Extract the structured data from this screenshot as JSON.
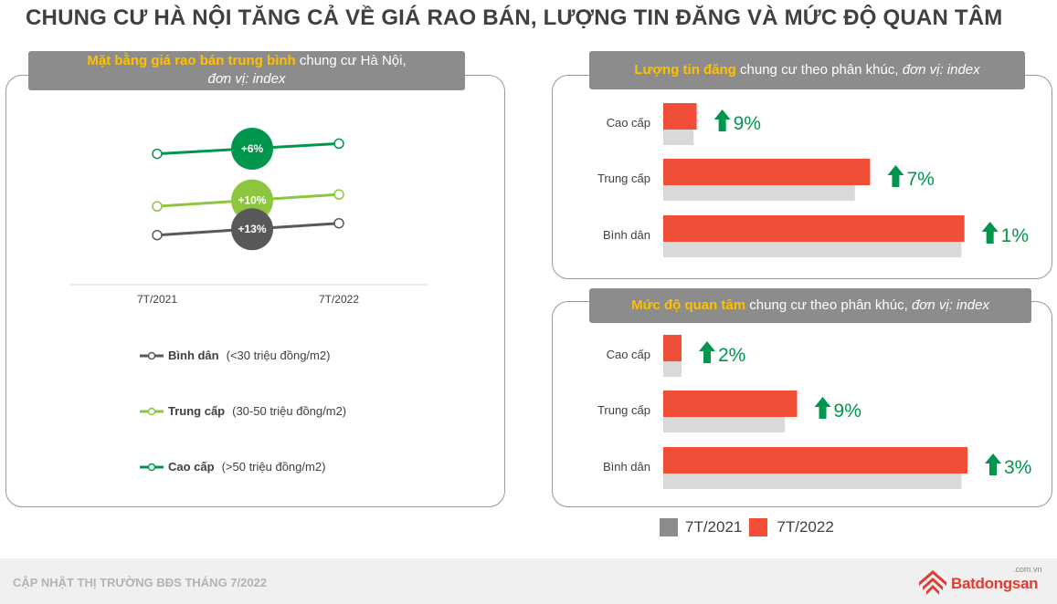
{
  "page_title": "CHUNG CƯ HÀ NỘI TĂNG CẢ VỀ GIÁ RAO BÁN, LƯỢNG TIN ĐĂNG VÀ MỨC ĐỘ QUAN TÂM",
  "colors": {
    "green_dark": "#00964e",
    "green_light": "#8cc63f",
    "gray_line": "#595959",
    "bar_2021": "#d9d9d9",
    "bar_2022": "#f04e36",
    "arrow": "#00964e",
    "tag_bg": "#8c8c8c",
    "highlight": "#ffc000"
  },
  "left_panel": {
    "tag_highlight": "Mặt bằng giá rao bán trung bình",
    "tag_rest": " chung cư Hà Nội,",
    "tag_line2": "đơn vị: index",
    "legend": [
      {
        "name": "Bình dân",
        "range": "(<30 triệu đồng/m2)",
        "color": "#595959"
      },
      {
        "name": "Trung cấp",
        "range": "(30-50 triệu đồng/m2)",
        "color": "#8cc63f"
      },
      {
        "name": "Cao cấp",
        "range": "(>50 triệu đồng/m2)",
        "color": "#00964e"
      }
    ]
  },
  "right_top": {
    "tag_highlight": "Lượng tin đăng",
    "tag_rest": " chung cư theo phân khúc, ",
    "tag_italic": "đơn vị: index"
  },
  "right_bottom": {
    "tag_highlight": "Mức độ quan tâm",
    "tag_rest": " chung cư theo phân khúc, ",
    "tag_italic": "đơn vị: index"
  },
  "bottom_legend": {
    "label_2021": "7T/2021",
    "label_2022": "7T/2022"
  },
  "footer": {
    "text": "CẬP NHẬT THỊ TRƯỜNG BĐS THÁNG 7/2022",
    "logo_name": "Batdongsan",
    "logo_domain": ".com.vn"
  },
  "chart_data": [
    {
      "type": "line",
      "title": "Mặt bằng giá rao bán trung bình chung cư Hà Nội, đơn vị: index",
      "x": [
        "7T/2021",
        "7T/2022"
      ],
      "series": [
        {
          "name": "Cao cấp",
          "values": [
            100,
            106
          ],
          "change_label": "+6%"
        },
        {
          "name": "Trung cấp",
          "values": [
            69,
            76
          ],
          "change_label": "+10%"
        },
        {
          "name": "Bình dân",
          "values": [
            52,
            59
          ],
          "change_label": "+13%"
        }
      ]
    },
    {
      "type": "bar",
      "orientation": "horizontal",
      "title": "Lượng tin đăng chung cư theo phân khúc, đơn vị: index",
      "categories": [
        "Cao cấp",
        "Trung cấp",
        "Bình dân"
      ],
      "series": [
        {
          "name": "7T/2021",
          "values": [
            10,
            63,
            98
          ]
        },
        {
          "name": "7T/2022",
          "values": [
            11,
            68,
            99
          ]
        }
      ],
      "change_labels": [
        "9%",
        "7%",
        "1%"
      ]
    },
    {
      "type": "bar",
      "orientation": "horizontal",
      "title": "Mức độ quan tâm chung cư theo phân khúc, đơn vị: index",
      "categories": [
        "Cao cấp",
        "Trung cấp",
        "Bình dân"
      ],
      "series": [
        {
          "name": "7T/2021",
          "values": [
            6,
            40,
            98
          ]
        },
        {
          "name": "7T/2022",
          "values": [
            6,
            44,
            100
          ]
        }
      ],
      "change_labels": [
        "2%",
        "9%",
        "3%"
      ]
    }
  ]
}
